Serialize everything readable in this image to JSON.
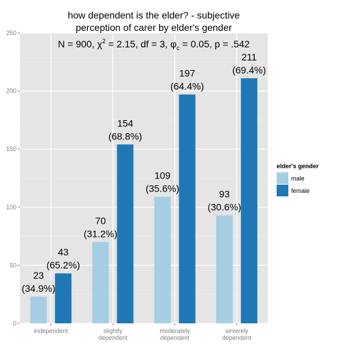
{
  "chart_data": {
    "type": "bar",
    "title": "how dependent is the elder? - subjective perception of carer by elder's gender",
    "title_lines": [
      "how dependent is the elder? - subjective",
      "perception of carer by elder's gender"
    ],
    "stats": {
      "N": "900",
      "chi2": "2.15",
      "df": "3",
      "phi_c": "0.05",
      "p": ".542"
    },
    "categories": [
      [
        "independent"
      ],
      [
        "slightly",
        "dependent"
      ],
      [
        "moderately",
        "dependent"
      ],
      [
        "severely",
        "dependent"
      ]
    ],
    "series": [
      {
        "name": "male",
        "color": "#a6cee3",
        "values": [
          23,
          70,
          109,
          93
        ],
        "percents": [
          "34.9%",
          "31.2%",
          "35.6%",
          "30.6%"
        ]
      },
      {
        "name": "female",
        "color": "#1f78b4",
        "values": [
          43,
          154,
          197,
          211
        ],
        "percents": [
          "65.2%",
          "68.8%",
          "64.4%",
          "69.4%"
        ]
      }
    ],
    "ylim": [
      0,
      250
    ],
    "yticks": [
      0,
      50,
      100,
      150,
      200,
      250
    ],
    "legend_title": "elder's gender",
    "legend_position": "right",
    "grid": true,
    "panel_background": "#e5e5e5"
  }
}
